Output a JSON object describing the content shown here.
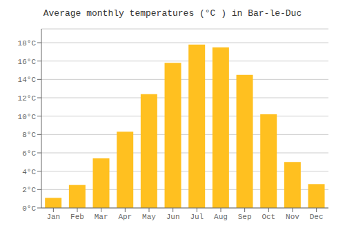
{
  "chart_data": {
    "type": "bar",
    "title": "Average monthly temperatures (°C ) in Bar-le-Duc",
    "categories": [
      "Jan",
      "Feb",
      "Mar",
      "Apr",
      "May",
      "Jun",
      "Jul",
      "Aug",
      "Sep",
      "Oct",
      "Nov",
      "Dec"
    ],
    "values": [
      1.1,
      2.5,
      5.4,
      8.3,
      12.4,
      15.8,
      17.8,
      17.5,
      14.5,
      10.2,
      5.0,
      2.6
    ],
    "color": "#FFC020",
    "ylim": [
      0,
      19.5
    ],
    "yticks": [
      {
        "value": 0,
        "label": "0°C"
      },
      {
        "value": 2,
        "label": "2°C"
      },
      {
        "value": 4,
        "label": "4°C"
      },
      {
        "value": 6,
        "label": "6°C"
      },
      {
        "value": 8,
        "label": "8°C"
      },
      {
        "value": 10,
        "label": "10°C"
      },
      {
        "value": 12,
        "label": "12°C"
      },
      {
        "value": 14,
        "label": "14°C"
      },
      {
        "value": 16,
        "label": "16°C"
      },
      {
        "value": 18,
        "label": "18°C"
      }
    ],
    "grid": true
  }
}
